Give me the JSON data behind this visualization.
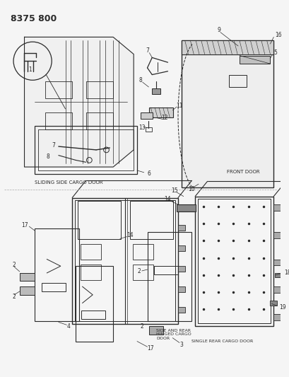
{
  "title": "8375 800",
  "bg_color": "#f5f5f5",
  "line_color": "#2a2a2a",
  "text_color": "#2a2a2a",
  "labels": {
    "sliding_door": "SLIDING SIDE CARGO DOOR",
    "front_door": "FRONT DOOR",
    "side_rear_door": "SIDE AND REAR\nHINGED CARGO\nDOOR",
    "single_rear_door": "SINGLE REAR CARGO DOOR"
  }
}
